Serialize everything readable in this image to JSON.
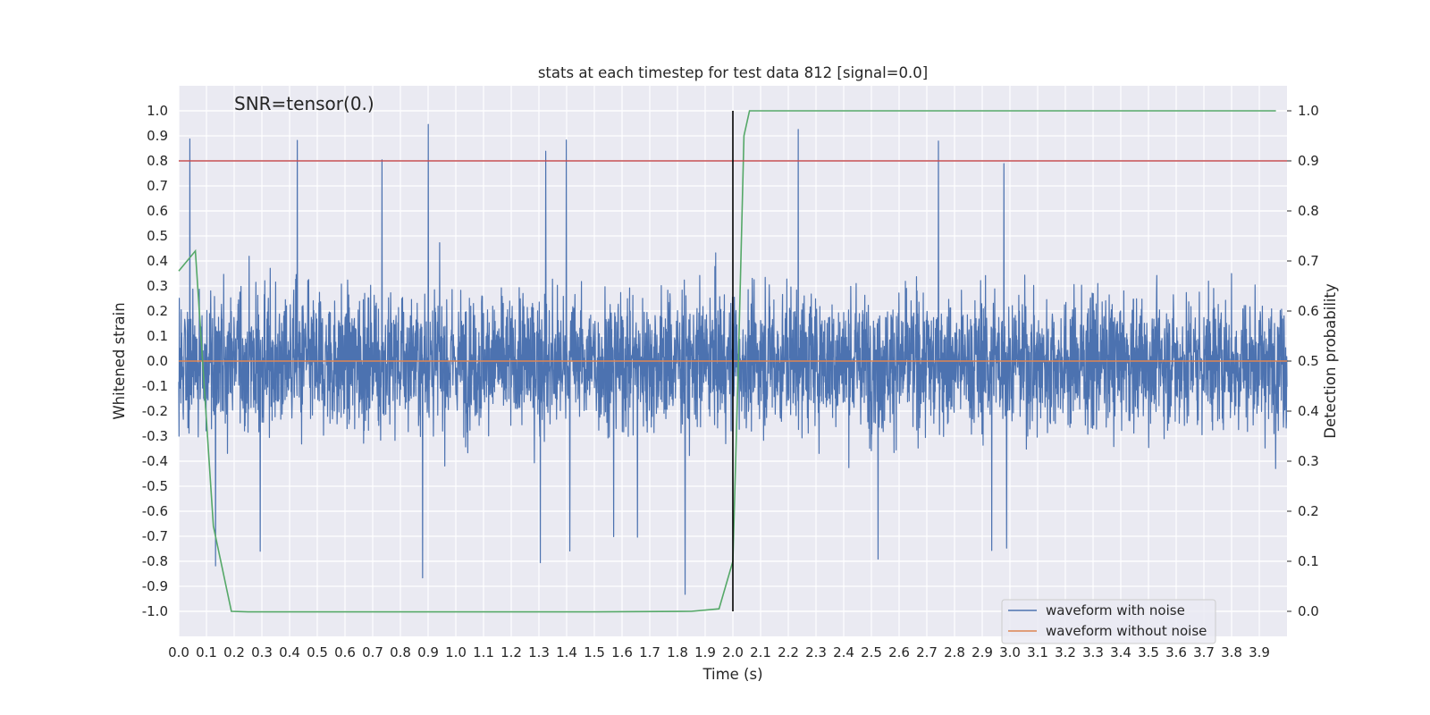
{
  "chart_data": {
    "type": "line",
    "title": "stats at each timestep for test data 812 [signal=0.0]",
    "xlabel": "Time (s)",
    "ylabel": "Whitened strain",
    "y2label": "Detection probability",
    "annotation": "SNR=tensor(0.)",
    "xlim": [
      0.0,
      4.0
    ],
    "ylim": [
      -1.1,
      1.1
    ],
    "y2lim": [
      -0.05,
      1.05
    ],
    "x_ticks": [
      "0.0",
      "0.1",
      "0.2",
      "0.3",
      "0.4",
      "0.5",
      "0.6",
      "0.7",
      "0.8",
      "0.9",
      "1.0",
      "1.1",
      "1.2",
      "1.3",
      "1.4",
      "1.5",
      "1.6",
      "1.7",
      "1.8",
      "1.9",
      "2.0",
      "2.1",
      "2.2",
      "2.3",
      "2.4",
      "2.5",
      "2.6",
      "2.7",
      "2.8",
      "2.9",
      "3.0",
      "3.1",
      "3.2",
      "3.3",
      "3.4",
      "3.5",
      "3.6",
      "3.7",
      "3.8",
      "3.9"
    ],
    "y_ticks": [
      "1.0",
      "0.9",
      "0.8",
      "0.7",
      "0.6",
      "0.5",
      "0.4",
      "0.3",
      "0.2",
      "0.1",
      "0.0",
      "-0.1",
      "-0.2",
      "-0.3",
      "-0.4",
      "-0.5",
      "-0.6",
      "-0.7",
      "-0.8",
      "-0.9",
      "-1.0"
    ],
    "y2_ticks": [
      "1.0",
      "0.9",
      "0.8",
      "0.7",
      "0.6",
      "0.5",
      "0.4",
      "0.3",
      "0.2",
      "0.1",
      "0.0"
    ],
    "grid": true,
    "legend_position": "lower-right",
    "series": [
      {
        "name": "waveform with noise",
        "color": "#4c72b0",
        "axis": "left",
        "noise": {
          "n_samples": 4096,
          "x_start": 0.0,
          "x_end": 4.0,
          "typical_range": [
            -0.5,
            0.5
          ],
          "extreme_range": [
            -0.95,
            0.96
          ]
        }
      },
      {
        "name": "waveform without noise",
        "color": "#dd8452",
        "axis": "left",
        "x": [
          0.0,
          4.0
        ],
        "y": [
          0.0,
          0.0
        ]
      },
      {
        "color": "#55a868",
        "axis": "right",
        "x": [
          0.0,
          0.06,
          0.125,
          0.19,
          0.25,
          0.5,
          1.0,
          1.5,
          1.85,
          1.95,
          2.0,
          2.02,
          2.04,
          2.06,
          2.12,
          2.5,
          3.0,
          3.5,
          3.96
        ],
        "y": [
          0.68,
          0.72,
          0.17,
          0.0,
          -0.001,
          -0.001,
          -0.001,
          -0.001,
          0.0,
          0.005,
          0.1,
          0.5,
          0.95,
          1.0,
          1.0,
          1.0,
          1.0,
          1.0,
          1.0
        ]
      },
      {
        "color": "#c44e52",
        "axis": "right",
        "x": [
          0.0,
          4.0
        ],
        "y": [
          0.9,
          0.9
        ]
      }
    ],
    "vlines": [
      {
        "x": 2.0,
        "y_range": [
          0.0,
          1.0
        ],
        "axis": "right",
        "color": "#000000"
      }
    ]
  }
}
